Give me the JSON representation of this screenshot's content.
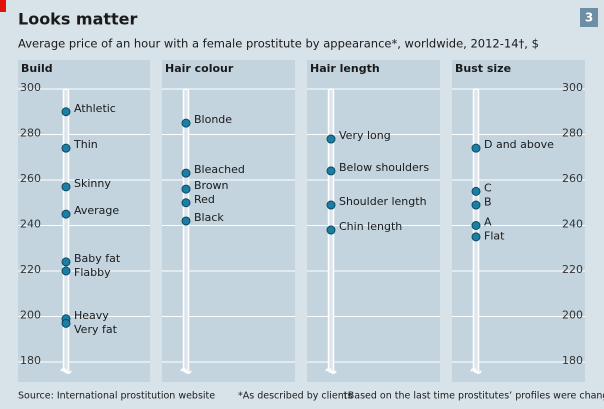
{
  "title": "Looks matter",
  "subtitle": "Average price of an hour with a female prostitute by appearance*, worldwide, 2012-14†, $",
  "page_number": "3",
  "source": "Source: International prostitution website",
  "footnotes": [
    "*As described by clients",
    "†Based on the last time prostitutes’ profiles were changed"
  ],
  "chart_data": [
    {
      "type": "dot",
      "title": "Build",
      "color": "#1b7ea3",
      "tick_labels": "left",
      "grid": true,
      "categories": [
        "Athletic",
        "Thin",
        "Skinny",
        "Average",
        "Baby fat",
        "Flabby",
        "Heavy",
        "Very fat"
      ],
      "values": [
        290,
        274,
        257,
        245,
        224,
        220,
        199,
        197
      ],
      "ylim": [
        180,
        300
      ],
      "yticks": [
        180,
        200,
        220,
        240,
        260,
        280,
        300
      ]
    },
    {
      "type": "dot",
      "title": "Hair colour",
      "color": "#1b7ea3",
      "grid": true,
      "categories": [
        "Blonde",
        "Bleached",
        "Brown",
        "Red",
        "Black"
      ],
      "values": [
        285,
        263,
        256,
        250,
        242
      ],
      "ylim": [
        180,
        300
      ],
      "yticks": [
        180,
        200,
        220,
        240,
        260,
        280,
        300
      ]
    },
    {
      "type": "dot",
      "title": "Hair length",
      "color": "#1b7ea3",
      "grid": true,
      "categories": [
        "Very long",
        "Below shoulders",
        "Shoulder length",
        "Chin length"
      ],
      "values": [
        278,
        264,
        249,
        238
      ],
      "ylim": [
        180,
        300
      ],
      "yticks": [
        180,
        200,
        220,
        240,
        260,
        280,
        300
      ]
    },
    {
      "type": "dot",
      "title": "Bust size",
      "color": "#1b7ea3",
      "tick_labels": "right",
      "grid": true,
      "categories": [
        "D and above",
        "C",
        "B",
        "A",
        "Flat"
      ],
      "values": [
        274,
        255,
        249,
        240,
        235
      ],
      "ylim": [
        180,
        300
      ],
      "yticks": [
        180,
        200,
        220,
        240,
        260,
        280,
        300
      ]
    }
  ]
}
